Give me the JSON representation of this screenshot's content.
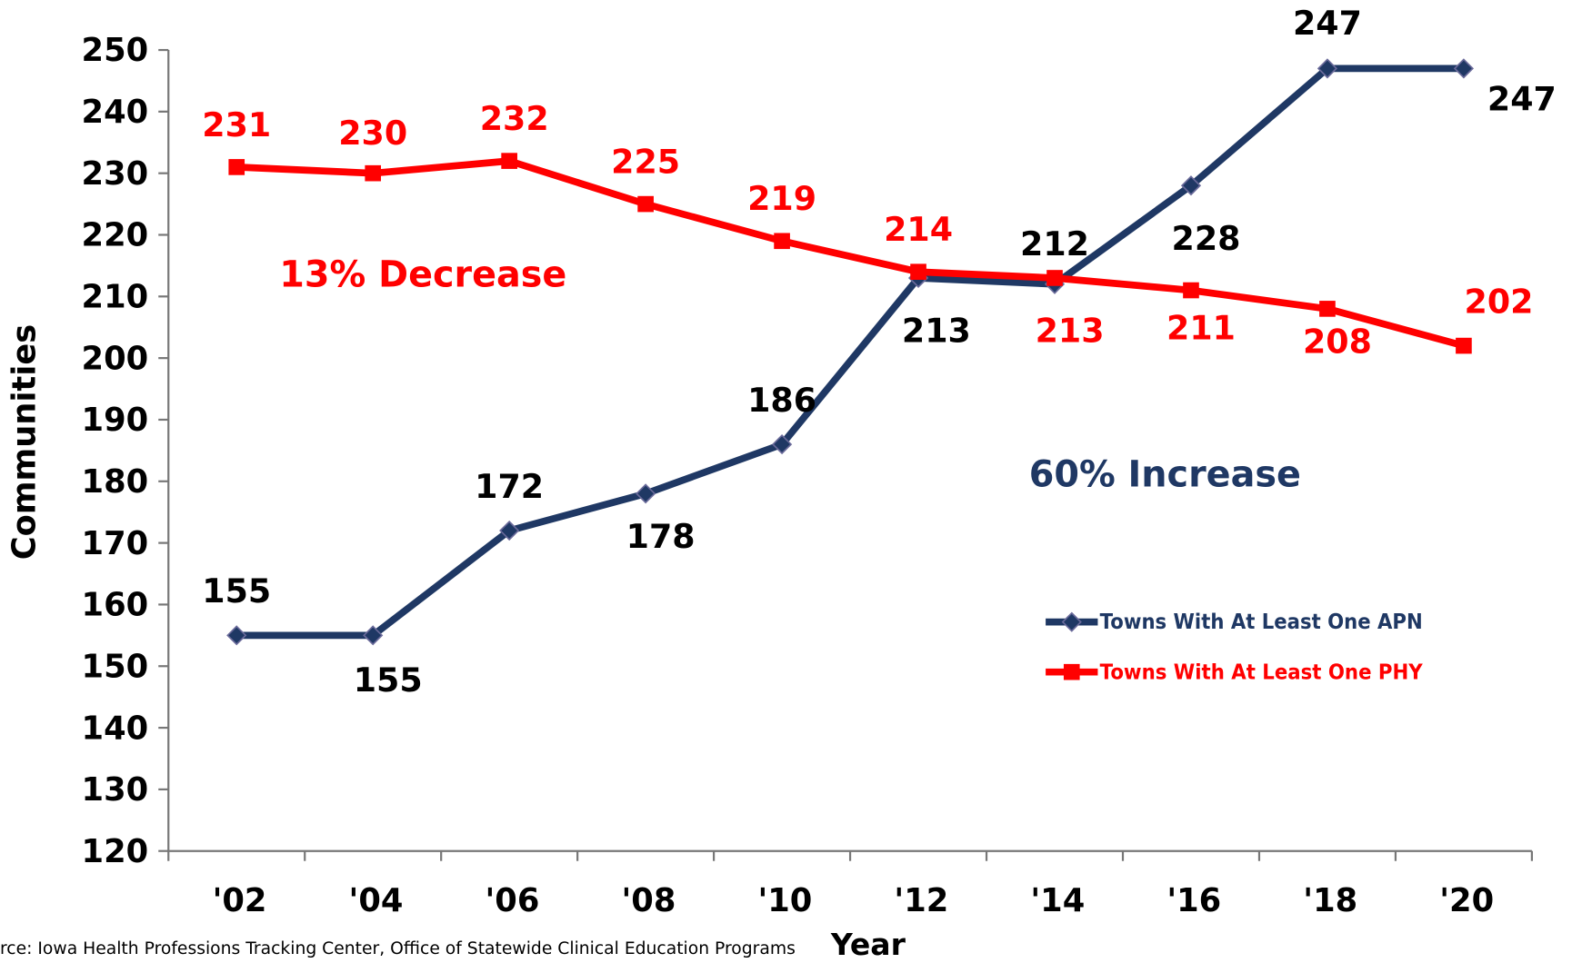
{
  "chart_data": {
    "type": "line",
    "categories": [
      "'02",
      "'04",
      "'06",
      "'08",
      "'10",
      "'12",
      "'14",
      "'16",
      "'18",
      "'20"
    ],
    "series": [
      {
        "name": "Towns With At Least One APN",
        "color": "#1f3864",
        "marker": "diamond",
        "values": [
          155,
          155,
          172,
          178,
          186,
          213,
          212,
          228,
          247,
          247
        ]
      },
      {
        "name": "Towns With At Least One PHY",
        "color": "#ff0000",
        "marker": "square",
        "values": [
          231,
          230,
          232,
          225,
          219,
          214,
          213,
          211,
          208,
          202
        ]
      }
    ],
    "ylim": [
      120,
      250
    ],
    "yticks": [
      120,
      130,
      140,
      150,
      160,
      170,
      180,
      190,
      200,
      210,
      220,
      230,
      240,
      250
    ],
    "ylabel": "Communities",
    "xlabel": "Year",
    "annotations": [
      "13% Decrease",
      "60% Increase"
    ],
    "source": "rce: Iowa Health Professions Tracking Center, Office of Statewide Clinical Education Programs",
    "legend": "lower right",
    "grid": false
  }
}
